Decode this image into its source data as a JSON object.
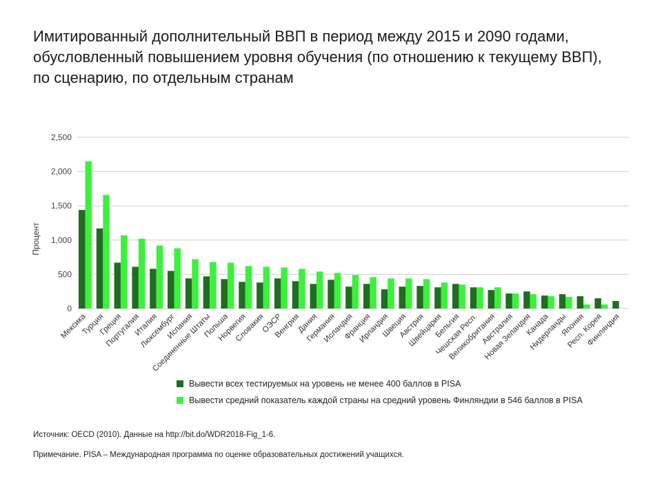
{
  "title_lines": [
    "Имитированный дополнительный ВВП в период между 2015 и 2090 годами,",
    "обусловленный повышением уровня обучения (по отношению к текущему ВВП),",
    "по сценарию, по отдельным странам"
  ],
  "colors": {
    "series1": "#1f6e1f",
    "series2": "#3ef03e",
    "grid": "#cfcfcf",
    "text": "#444444"
  },
  "chart_data": {
    "type": "bar",
    "title": "",
    "xlabel": "",
    "ylabel": "Процент",
    "ylim": [
      0,
      2500
    ],
    "yticks": [
      0,
      500,
      1000,
      1500,
      2000,
      2500
    ],
    "ytick_labels": [
      "0",
      "500",
      "1,000",
      "1,500",
      "2,000",
      "2,500"
    ],
    "grid": true,
    "legend_position": "bottom",
    "categories": [
      "Мексика",
      "Турция",
      "Греция",
      "Португалия",
      "Италия",
      "Люксембург",
      "Испания",
      "Соединенные Штаты",
      "Польша",
      "Норвегия",
      "Словакия",
      "ОЭСР",
      "Венгрия",
      "Дания",
      "Германия",
      "Исландия",
      "Франция",
      "Ирландия",
      "Швеция",
      "Австрия",
      "Швейцария",
      "Бельгия",
      "Чешская Респ.",
      "Великобритания",
      "Австралия",
      "Новая Зеландия",
      "Канада",
      "Нидерланды",
      "Япония",
      "Респ. Корея",
      "Финляндия"
    ],
    "series": [
      {
        "name": "Вывести всех тестируемых на уровень не менее 400 баллов в PISA",
        "values": [
          1440,
          1170,
          670,
          610,
          580,
          550,
          440,
          470,
          430,
          390,
          380,
          440,
          400,
          360,
          420,
          320,
          360,
          280,
          320,
          330,
          310,
          360,
          310,
          270,
          220,
          250,
          190,
          210,
          180,
          150,
          110
        ]
      },
      {
        "name": "Вывести средний показатель каждой страны на средний уровень Финляндии в 546 баллов в PISA",
        "values": [
          2150,
          1660,
          1070,
          1020,
          920,
          880,
          720,
          680,
          670,
          620,
          610,
          600,
          580,
          540,
          520,
          490,
          460,
          440,
          440,
          430,
          380,
          350,
          310,
          310,
          220,
          210,
          180,
          170,
          60,
          60,
          0
        ]
      }
    ]
  },
  "notes": {
    "source": "Источник: OECD (2010). Данные на http://bit.do/WDR2018-Fig_1-6.",
    "note": "Примечание. PISA – Международная программа по оценке образовательных достижений учащихся."
  }
}
